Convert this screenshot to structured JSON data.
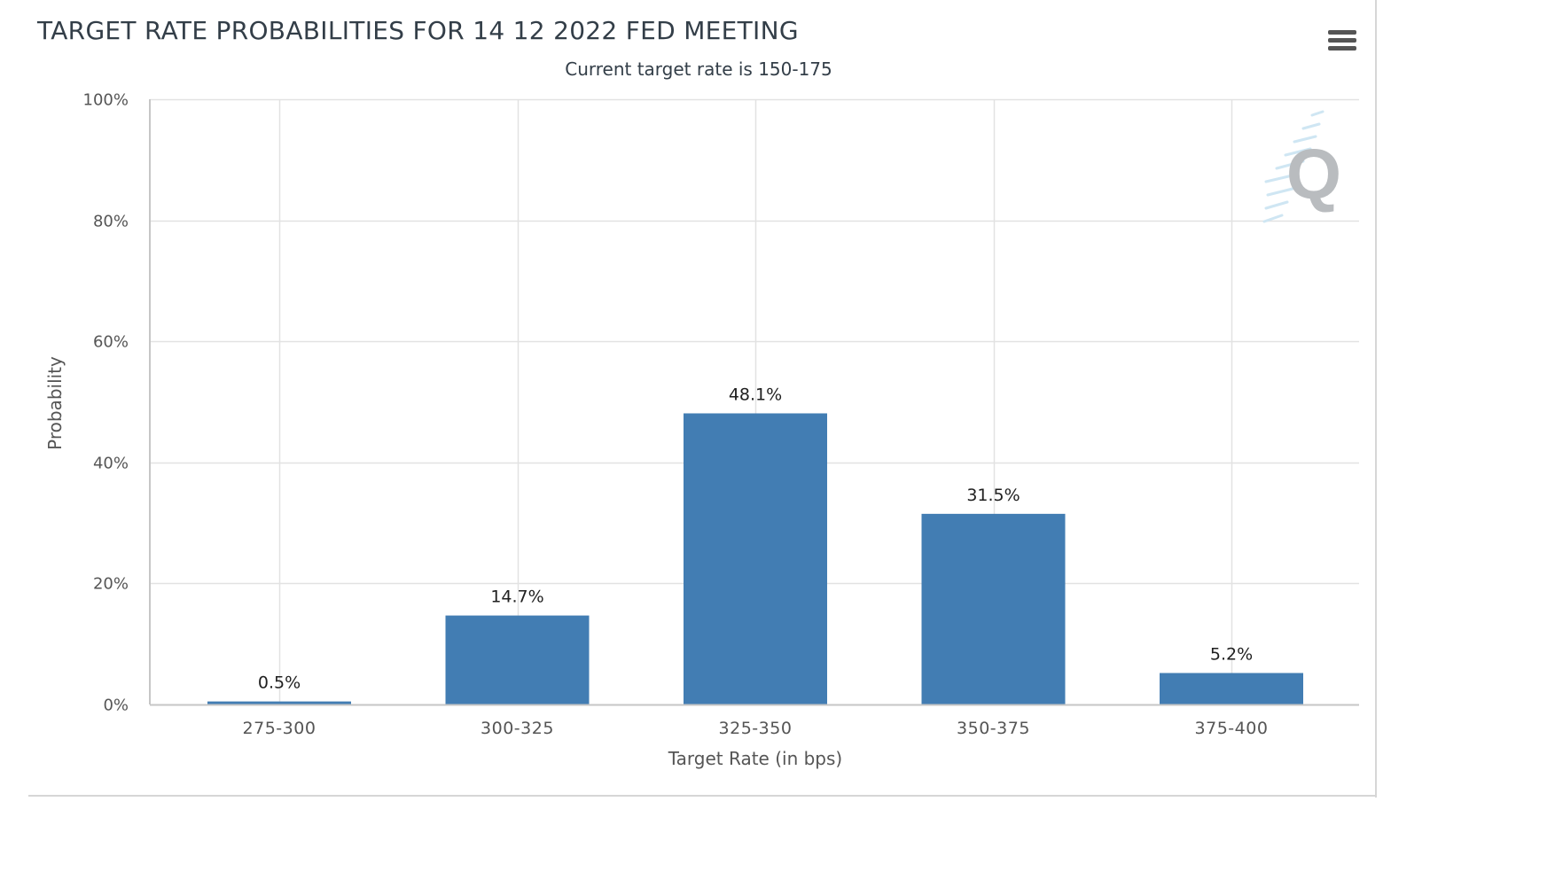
{
  "chart_data": {
    "type": "bar",
    "title": "TARGET RATE PROBABILITIES FOR 14 12 2022 FED MEETING",
    "subtitle": "Current target rate is 150-175",
    "xlabel": "Target Rate (in bps)",
    "ylabel": "Probability",
    "categories": [
      "275-300",
      "300-325",
      "325-350",
      "350-375",
      "375-400"
    ],
    "values": [
      0.5,
      14.7,
      48.1,
      31.5,
      5.2
    ],
    "data_labels": [
      "0.5%",
      "14.7%",
      "48.1%",
      "31.5%",
      "5.2%"
    ],
    "ylim": [
      0,
      100
    ],
    "yticks": [
      0,
      20,
      40,
      60,
      80,
      100
    ],
    "ytick_labels": [
      "0%",
      "20%",
      "40%",
      "60%",
      "80%",
      "100%"
    ],
    "grid": true,
    "bar_color": "#427db3",
    "legend": "none"
  },
  "colors": {
    "bar": "#427db3",
    "title": "#333e48",
    "axis_text": "#555555",
    "grid": "#e2e2e2",
    "watermark": "#b9bcbf"
  },
  "toolbar": {
    "menu_icon": "hamburger-menu-icon"
  },
  "watermark": {
    "letter": "Q"
  }
}
